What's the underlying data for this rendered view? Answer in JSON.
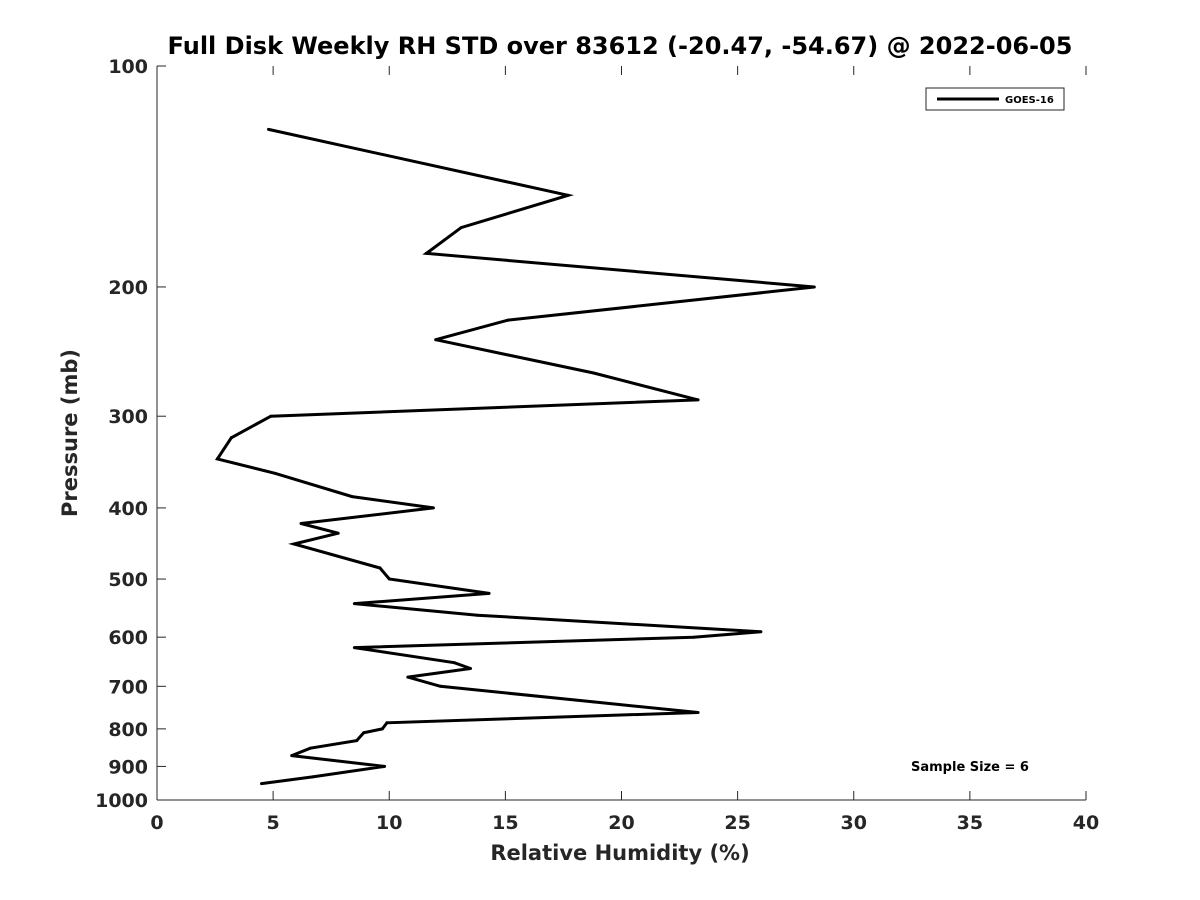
{
  "chart_data": {
    "type": "line",
    "title": "Full Disk Weekly RH STD over 83612 (-20.47, -54.67) @ 2022-06-05",
    "xlabel": "Relative Humidity (%)",
    "ylabel": "Pressure (mb)",
    "xlim": [
      0,
      40
    ],
    "ylim": [
      100,
      1000
    ],
    "yscale": "log",
    "yreversed": true,
    "xticks": [
      0,
      5,
      10,
      15,
      20,
      25,
      30,
      35,
      40
    ],
    "yticks": [
      100,
      200,
      300,
      400,
      500,
      600,
      700,
      800,
      900,
      1000
    ],
    "grid": false,
    "legend": {
      "entries": [
        "GOES-16"
      ],
      "placement": "top-right"
    },
    "annotations": [
      "Sample Size = 6"
    ],
    "series": [
      {
        "name": "GOES-16",
        "color": "#000000",
        "x": [
          4.8,
          17.7,
          13.1,
          11.6,
          28.3,
          15.1,
          12.0,
          18.8,
          23.3,
          4.9,
          3.2,
          2.6,
          5.1,
          8.4,
          11.9,
          6.2,
          7.8,
          5.9,
          9.6,
          10.0,
          14.3,
          8.5,
          13.8,
          26.0,
          23.1,
          8.5,
          12.8,
          13.5,
          10.8,
          12.2,
          18.8,
          23.3,
          9.9,
          9.7,
          8.9,
          8.6,
          6.6,
          5.8,
          9.8,
          6.7,
          4.5
        ],
        "y": [
          122,
          150,
          166,
          180,
          200,
          222,
          236,
          262,
          285,
          300,
          321,
          343,
          359,
          386,
          400,
          420,
          433,
          448,
          483,
          500,
          523,
          540,
          560,
          590,
          600,
          620,
          650,
          662,
          680,
          700,
          735,
          760,
          785,
          800,
          810,
          830,
          850,
          870,
          900,
          930,
          950
        ]
      }
    ]
  }
}
